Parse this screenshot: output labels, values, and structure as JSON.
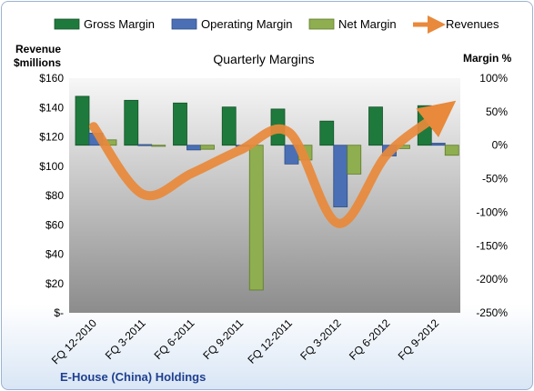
{
  "chart_data": {
    "type": "bar",
    "title": "Quarterly Margins",
    "footer": "E-House (China) Holdings",
    "y_left_label_line1": "Revenue",
    "y_left_label_line2": "$millions",
    "y_right_label": "Margin %",
    "categories": [
      "FQ 12-2010",
      "FQ 3-2011",
      "FQ 6-2011",
      "FQ 9-2011",
      "FQ 12-2011",
      "FQ 3-2012",
      "FQ 6-2012",
      "FQ 9-2012"
    ],
    "left_axis": {
      "min": 0,
      "max": 160,
      "step": 20,
      "tick_labels": [
        "$-",
        "$20",
        "$40",
        "$60",
        "$80",
        "$100",
        "$120",
        "$140",
        "$160"
      ]
    },
    "right_axis": {
      "min": -250,
      "max": 100,
      "step": 50,
      "tick_labels": [
        "-250%",
        "-200%",
        "-150%",
        "-100%",
        "-50%",
        "0%",
        "50%",
        "100%"
      ]
    },
    "series": [
      {
        "name": "Gross Margin",
        "kind": "bar",
        "axis": "right",
        "color": "#1e7a3c",
        "values": [
          73,
          67,
          63,
          57,
          54,
          36,
          57,
          59
        ]
      },
      {
        "name": "Operating Margin",
        "kind": "bar",
        "axis": "right",
        "color": "#4a6fb5",
        "values": [
          18,
          1,
          -7,
          0,
          -28,
          -92,
          -16,
          3
        ]
      },
      {
        "name": "Net Margin",
        "kind": "bar",
        "axis": "right",
        "color": "#8fae4f",
        "values": [
          8,
          -1,
          -6,
          -216,
          -22,
          -43,
          -5,
          -15
        ]
      },
      {
        "name": "Revenues",
        "kind": "line",
        "axis": "left",
        "color": "#e8893b",
        "values": [
          127,
          81,
          95,
          111,
          123,
          61,
          108,
          134
        ]
      }
    ],
    "legend_position": "top",
    "grid": false
  }
}
